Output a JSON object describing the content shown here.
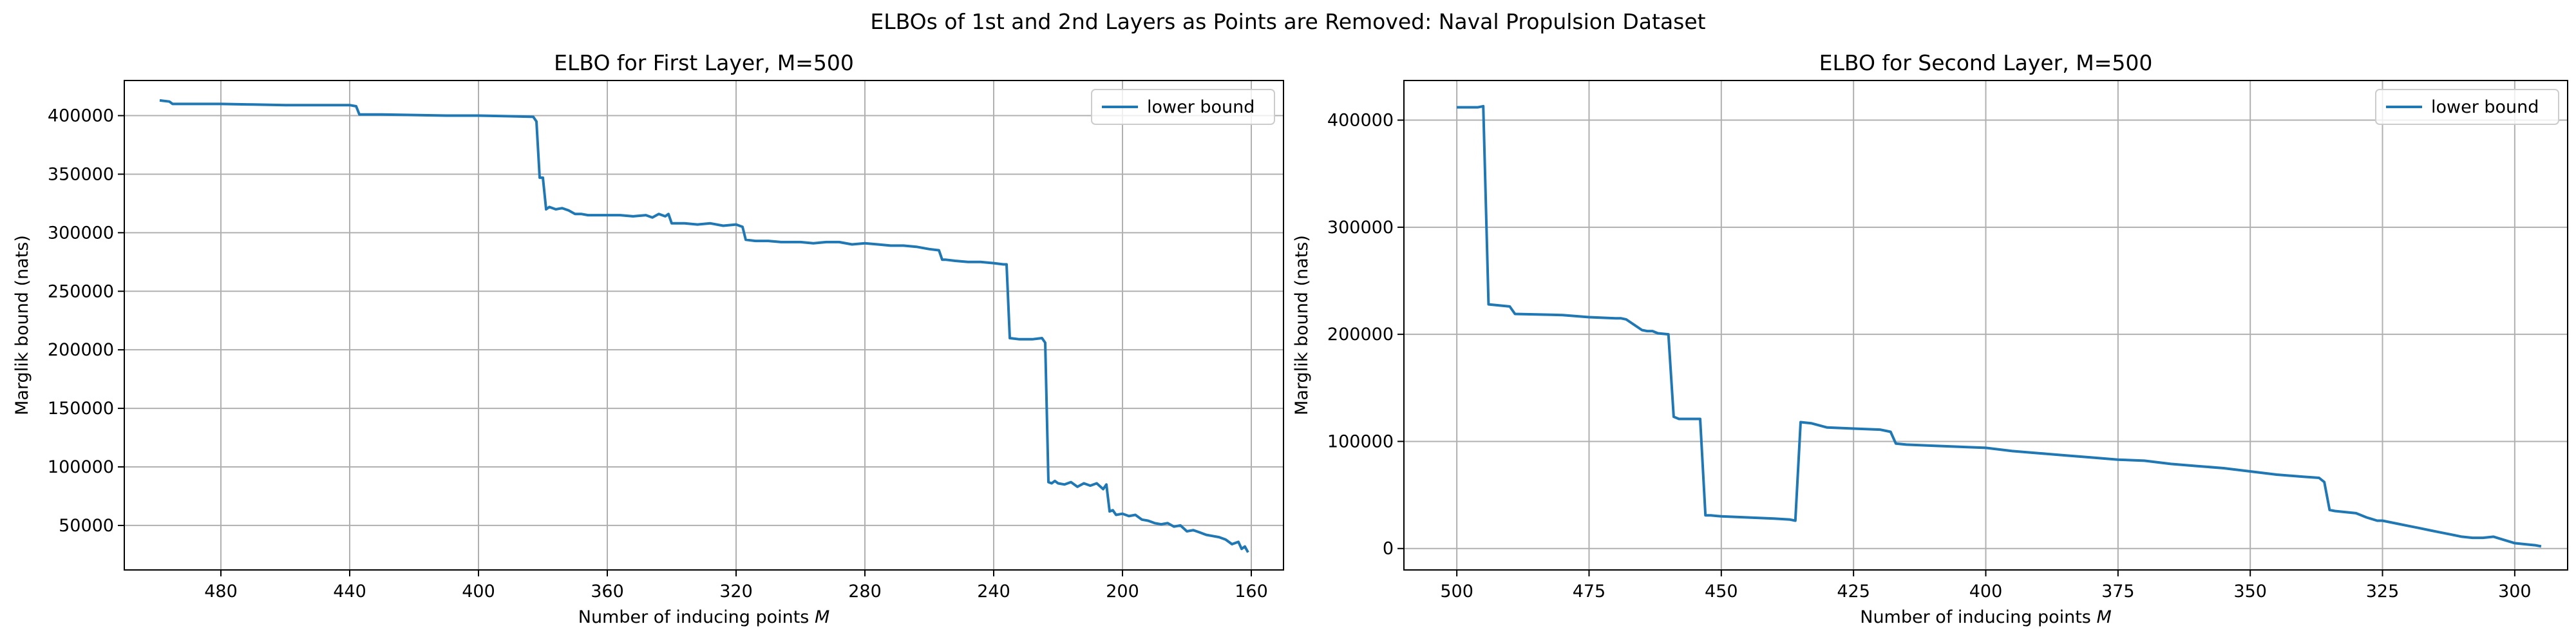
{
  "suptitle": "ELBOs of 1st and 2nd Layers as Points are Removed: Naval Propulsion Dataset",
  "colors": {
    "line": "#1f77b4",
    "grid": "#b0b0b0",
    "frame": "#000000"
  },
  "chart_data": [
    {
      "type": "line",
      "title": "ELBO for First Layer, M=500",
      "xlabel": "Number of inducing points M",
      "ylabel": "Marglik bound (nats)",
      "xlim": [
        510,
        150
      ],
      "ylim": [
        12000,
        430000
      ],
      "x_inverted": true,
      "xticks": [
        480,
        440,
        400,
        360,
        320,
        280,
        240,
        200,
        160
      ],
      "xtick_labels": [
        "480",
        "440",
        "400",
        "360",
        "320",
        "280",
        "240",
        "200",
        "160"
      ],
      "yticks": [
        50000,
        100000,
        150000,
        200000,
        250000,
        300000,
        350000,
        400000
      ],
      "ytick_labels": [
        "50000",
        "100000",
        "150000",
        "200000",
        "250000",
        "300000",
        "350000",
        "400000"
      ],
      "grid": true,
      "legend": {
        "position": "upper right",
        "entries": [
          "lower bound"
        ]
      },
      "series": [
        {
          "name": "lower bound",
          "x": [
            499,
            496,
            495,
            490,
            480,
            470,
            460,
            450,
            440,
            438,
            437,
            430,
            420,
            410,
            400,
            390,
            383,
            382,
            381,
            380,
            379,
            378,
            376,
            374,
            372,
            370,
            368,
            366,
            360,
            356,
            352,
            348,
            346,
            344,
            342,
            341,
            340,
            336,
            332,
            328,
            324,
            320,
            318,
            317,
            314,
            310,
            306,
            300,
            296,
            292,
            288,
            284,
            280,
            276,
            272,
            268,
            264,
            260,
            257,
            256,
            255,
            252,
            248,
            244,
            240,
            237,
            236,
            235,
            232,
            228,
            225,
            224,
            223,
            222,
            221,
            220,
            218,
            216,
            214,
            212,
            210,
            208,
            206,
            205,
            204,
            203,
            202,
            200,
            198,
            196,
            194,
            192,
            190,
            188,
            186,
            184,
            182,
            180,
            178,
            176,
            174,
            172,
            170,
            168,
            166,
            164,
            163,
            162,
            161
          ],
          "y": [
            413000,
            412000,
            410000,
            410000,
            410000,
            409500,
            409000,
            409000,
            409000,
            408000,
            401000,
            401000,
            400500,
            400000,
            400000,
            399500,
            399000,
            395000,
            347000,
            347000,
            320000,
            322000,
            320000,
            321000,
            319000,
            316000,
            316000,
            315000,
            315000,
            315000,
            314000,
            315000,
            313000,
            316000,
            314000,
            316000,
            308000,
            308000,
            307000,
            308000,
            306000,
            307000,
            305000,
            294000,
            293000,
            293000,
            292000,
            292000,
            291000,
            292000,
            292000,
            290000,
            291000,
            290000,
            289000,
            289000,
            288000,
            286000,
            285000,
            277000,
            277000,
            276000,
            275000,
            275000,
            274000,
            273000,
            273000,
            210000,
            209000,
            209000,
            210000,
            206000,
            87000,
            86000,
            88000,
            86000,
            85000,
            87000,
            83000,
            86000,
            84000,
            86000,
            81000,
            85000,
            62000,
            63000,
            59000,
            60000,
            58000,
            59000,
            55000,
            54000,
            52000,
            51000,
            52000,
            49000,
            50000,
            45000,
            46000,
            44000,
            42000,
            41000,
            40000,
            38000,
            34000,
            36000,
            30000,
            32000,
            27000
          ]
        }
      ]
    },
    {
      "type": "line",
      "title": "ELBO for Second Layer,  M=500",
      "xlabel": "Number of inducing points M",
      "ylabel": "Marglik bound (nats)",
      "xlim": [
        510,
        290
      ],
      "ylim": [
        -20000,
        437000
      ],
      "x_inverted": true,
      "xticks": [
        500,
        475,
        450,
        425,
        400,
        375,
        350,
        325,
        300
      ],
      "xtick_labels": [
        "500",
        "475",
        "450",
        "425",
        "400",
        "375",
        "350",
        "325",
        "300"
      ],
      "yticks": [
        0,
        100000,
        200000,
        300000,
        400000
      ],
      "ytick_labels": [
        "0",
        "100000",
        "200000",
        "300000",
        "400000"
      ],
      "grid": true,
      "legend": {
        "position": "upper right",
        "entries": [
          "lower bound"
        ]
      },
      "series": [
        {
          "name": "lower bound",
          "x": [
            500,
            496,
            495,
            494,
            490,
            489,
            480,
            475,
            470,
            469,
            468,
            465,
            464,
            463,
            462,
            460,
            459,
            458,
            454,
            453,
            452,
            450,
            445,
            440,
            437,
            436,
            435,
            433,
            430,
            425,
            420,
            418,
            417,
            415,
            410,
            405,
            400,
            395,
            390,
            385,
            380,
            375,
            370,
            365,
            360,
            355,
            350,
            345,
            340,
            337,
            336,
            335,
            334,
            330,
            328,
            326,
            325,
            322,
            320,
            318,
            316,
            314,
            312,
            310,
            308,
            306,
            304,
            302,
            300,
            298,
            296,
            295
          ],
          "y": [
            412000,
            412000,
            413000,
            228000,
            226000,
            219000,
            218000,
            216000,
            215000,
            215000,
            214000,
            204000,
            203000,
            203000,
            201000,
            200000,
            123000,
            121000,
            121000,
            31000,
            31000,
            30000,
            29000,
            28000,
            27000,
            26000,
            118000,
            117000,
            113000,
            112000,
            111000,
            109000,
            98000,
            97000,
            96000,
            95000,
            94000,
            91000,
            89000,
            87000,
            85000,
            83000,
            82000,
            79000,
            77000,
            75000,
            72000,
            69000,
            67000,
            66000,
            62000,
            36000,
            35000,
            33000,
            29000,
            26000,
            26000,
            23000,
            21000,
            19000,
            17000,
            15000,
            13000,
            11000,
            10000,
            10000,
            11000,
            8000,
            5000,
            4000,
            3000,
            2000
          ]
        }
      ]
    }
  ]
}
